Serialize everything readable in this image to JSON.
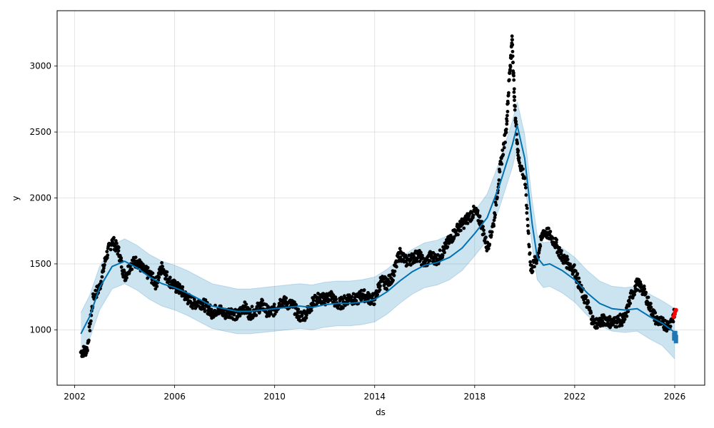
{
  "chart_data": {
    "type": "scatter",
    "xlabel": "ds",
    "ylabel": "y",
    "xlim": [
      2001.3,
      2027.2
    ],
    "ylim": [
      580,
      3420
    ],
    "x_ticks": [
      2002,
      2006,
      2010,
      2014,
      2018,
      2022,
      2026
    ],
    "x_tick_labels": [
      "2002",
      "2006",
      "2010",
      "2014",
      "2018",
      "2022",
      "2026"
    ],
    "y_ticks": [
      1000,
      1500,
      2000,
      2500,
      3000
    ],
    "y_tick_labels": [
      "1000",
      "1500",
      "2000",
      "2500",
      "3000"
    ],
    "grid": true,
    "series": [
      {
        "role": "observed",
        "marker": "point",
        "color": "#000000",
        "x": [
          2002.25,
          2002.5,
          2002.75,
          2003.0,
          2003.25,
          2003.5,
          2003.75,
          2004.0,
          2004.25,
          2004.5,
          2004.75,
          2005.0,
          2005.25,
          2005.5,
          2005.75,
          2006.0,
          2006.25,
          2006.5,
          2006.75,
          2007.0,
          2007.25,
          2007.5,
          2007.75,
          2008.0,
          2008.25,
          2008.5,
          2008.75,
          2009.0,
          2009.25,
          2009.5,
          2009.75,
          2010.0,
          2010.25,
          2010.5,
          2010.75,
          2011.0,
          2011.25,
          2011.5,
          2011.75,
          2012.0,
          2012.25,
          2012.5,
          2012.75,
          2013.0,
          2013.25,
          2013.5,
          2013.75,
          2014.0,
          2014.25,
          2014.5,
          2014.75,
          2015.0,
          2015.25,
          2015.5,
          2015.75,
          2016.0,
          2016.25,
          2016.5,
          2016.75,
          2017.0,
          2017.25,
          2017.5,
          2017.75,
          2018.0,
          2018.25,
          2018.5,
          2018.75,
          2019.0,
          2019.25,
          2019.4,
          2019.5,
          2019.6,
          2019.75,
          2020.0,
          2020.25,
          2020.5,
          2020.75,
          2021.0,
          2021.25,
          2021.5,
          2021.75,
          2022.0,
          2022.25,
          2022.5,
          2022.75,
          2023.0,
          2023.25,
          2023.5,
          2023.75,
          2024.0,
          2024.25,
          2024.5,
          2024.75,
          2025.0,
          2025.25,
          2025.5,
          2025.75,
          2026.0
        ],
        "y": [
          830,
          850,
          1250,
          1320,
          1550,
          1680,
          1600,
          1400,
          1500,
          1520,
          1450,
          1420,
          1350,
          1480,
          1380,
          1330,
          1300,
          1240,
          1200,
          1210,
          1180,
          1130,
          1160,
          1120,
          1140,
          1100,
          1180,
          1120,
          1150,
          1190,
          1130,
          1150,
          1220,
          1200,
          1180,
          1100,
          1120,
          1200,
          1240,
          1230,
          1260,
          1190,
          1210,
          1250,
          1220,
          1270,
          1240,
          1230,
          1370,
          1350,
          1420,
          1580,
          1520,
          1540,
          1570,
          1500,
          1560,
          1530,
          1600,
          1680,
          1750,
          1800,
          1850,
          1900,
          1820,
          1620,
          1800,
          2200,
          2500,
          2950,
          3200,
          2700,
          2300,
          2150,
          1450,
          1550,
          1750,
          1720,
          1650,
          1550,
          1500,
          1450,
          1300,
          1200,
          1050,
          1060,
          1080,
          1050,
          1070,
          1080,
          1250,
          1350,
          1300,
          1180,
          1080,
          1050,
          1030,
          1120
        ]
      },
      {
        "role": "trend",
        "color": "#0072b2",
        "x": [
          2002.25,
          2002.6,
          2003.0,
          2003.5,
          2004.0,
          2004.5,
          2005.0,
          2005.5,
          2006.0,
          2006.5,
          2007.0,
          2007.5,
          2008.0,
          2008.5,
          2009.0,
          2009.5,
          2010.0,
          2010.5,
          2011.0,
          2011.5,
          2012.0,
          2012.5,
          2013.0,
          2013.5,
          2014.0,
          2014.5,
          2015.0,
          2015.5,
          2016.0,
          2016.5,
          2017.0,
          2017.5,
          2018.0,
          2018.5,
          2019.0,
          2019.5,
          2019.7,
          2020.0,
          2020.3,
          2020.5,
          2020.75,
          2021.0,
          2021.5,
          2022.0,
          2022.5,
          2023.0,
          2023.5,
          2024.0,
          2024.5,
          2025.0,
          2025.5,
          2026.0
        ],
        "y": [
          970,
          1100,
          1320,
          1480,
          1520,
          1470,
          1400,
          1350,
          1320,
          1280,
          1230,
          1180,
          1160,
          1140,
          1140,
          1150,
          1160,
          1170,
          1180,
          1170,
          1190,
          1200,
          1200,
          1210,
          1230,
          1290,
          1370,
          1440,
          1490,
          1510,
          1550,
          1620,
          1730,
          1850,
          2100,
          2400,
          2550,
          2300,
          1800,
          1550,
          1490,
          1500,
          1450,
          1380,
          1280,
          1200,
          1160,
          1150,
          1160,
          1100,
          1050,
          980
        ]
      },
      {
        "role": "uncertainty-upper",
        "color": "#0072b2",
        "x": [
          2002.25,
          2002.6,
          2003.0,
          2003.5,
          2004.0,
          2004.5,
          2005.0,
          2005.5,
          2006.0,
          2006.5,
          2007.0,
          2007.5,
          2008.0,
          2008.5,
          2009.0,
          2009.5,
          2010.0,
          2010.5,
          2011.0,
          2011.5,
          2012.0,
          2012.5,
          2013.0,
          2013.5,
          2014.0,
          2014.5,
          2015.0,
          2015.5,
          2016.0,
          2016.5,
          2017.0,
          2017.5,
          2018.0,
          2018.5,
          2019.0,
          2019.5,
          2019.7,
          2020.0,
          2020.3,
          2020.5,
          2020.75,
          2021.0,
          2021.5,
          2022.0,
          2022.5,
          2023.0,
          2023.5,
          2024.0,
          2024.5,
          2025.0,
          2025.5,
          2026.0
        ],
        "y": [
          1130,
          1260,
          1480,
          1640,
          1690,
          1640,
          1570,
          1520,
          1490,
          1450,
          1400,
          1350,
          1330,
          1310,
          1310,
          1320,
          1330,
          1340,
          1350,
          1340,
          1360,
          1370,
          1370,
          1380,
          1400,
          1460,
          1540,
          1610,
          1660,
          1680,
          1720,
          1790,
          1900,
          2030,
          2280,
          2580,
          2730,
          2480,
          1980,
          1720,
          1660,
          1670,
          1620,
          1550,
          1450,
          1370,
          1330,
          1320,
          1330,
          1270,
          1220,
          1160
        ]
      },
      {
        "role": "uncertainty-lower",
        "color": "#0072b2",
        "x": [
          2002.25,
          2002.6,
          2003.0,
          2003.5,
          2004.0,
          2004.5,
          2005.0,
          2005.5,
          2006.0,
          2006.5,
          2007.0,
          2007.5,
          2008.0,
          2008.5,
          2009.0,
          2009.5,
          2010.0,
          2010.5,
          2011.0,
          2011.5,
          2012.0,
          2012.5,
          2013.0,
          2013.5,
          2014.0,
          2014.5,
          2015.0,
          2015.5,
          2016.0,
          2016.5,
          2017.0,
          2017.5,
          2018.0,
          2018.5,
          2019.0,
          2019.5,
          2019.7,
          2020.0,
          2020.3,
          2020.5,
          2020.75,
          2021.0,
          2021.5,
          2022.0,
          2022.5,
          2023.0,
          2023.5,
          2024.0,
          2024.5,
          2025.0,
          2025.5,
          2026.0
        ],
        "y": [
          800,
          930,
          1150,
          1310,
          1350,
          1300,
          1230,
          1180,
          1150,
          1110,
          1060,
          1010,
          990,
          970,
          970,
          980,
          990,
          1000,
          1010,
          1000,
          1020,
          1030,
          1030,
          1040,
          1060,
          1120,
          1200,
          1270,
          1320,
          1340,
          1380,
          1450,
          1560,
          1680,
          1930,
          2230,
          2380,
          2130,
          1630,
          1380,
          1320,
          1330,
          1280,
          1210,
          1110,
          1030,
          990,
          980,
          990,
          930,
          880,
          780
        ]
      },
      {
        "role": "recent-observed",
        "color": "#ff0000",
        "x": [
          2025.95,
          2026.0,
          2026.02,
          2026.05
        ],
        "y": [
          1100,
          1120,
          1140,
          1150
        ]
      },
      {
        "role": "forecast-point",
        "color": "#1f77b4",
        "x": [
          2025.98,
          2026.02,
          2026.05
        ],
        "y": [
          950,
          960,
          930
        ]
      }
    ]
  }
}
